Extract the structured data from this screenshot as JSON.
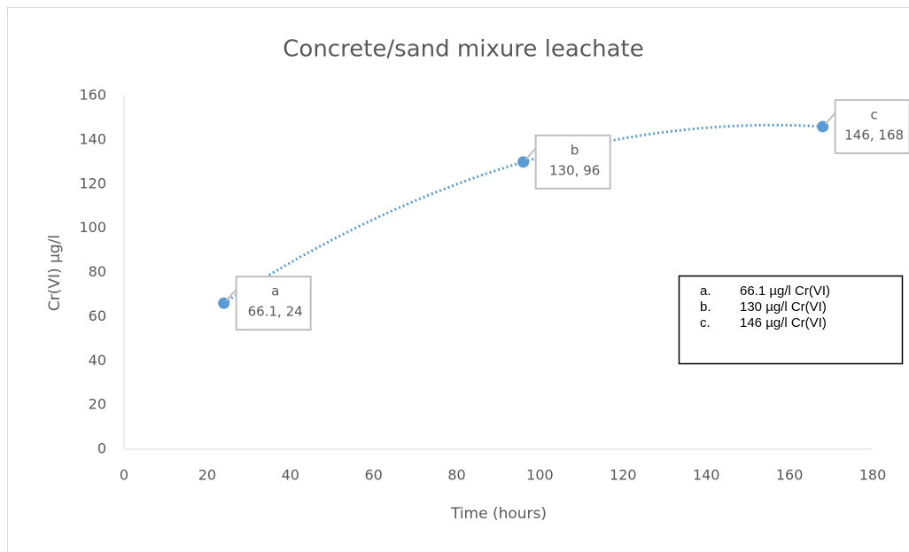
{
  "chart_data": {
    "type": "scatter",
    "title": "Concrete/sand mixure leachate",
    "x_label": "Time (hours)",
    "y_label": "Cr(VI) µg/l",
    "series": [
      {
        "color": "#5b9bd5",
        "x": [
          24,
          96,
          168
        ],
        "values": [
          66.1,
          130,
          146
        ],
        "point_labels": [
          "a",
          "b",
          "c"
        ],
        "value_labels": [
          "66.1, 24",
          "130, 96",
          "146, 168"
        ]
      }
    ],
    "trendline": "dotted",
    "xlim": [
      0,
      180
    ],
    "xticks": [
      0,
      20,
      40,
      60,
      80,
      100,
      120,
      140,
      160,
      180
    ],
    "ylim": [
      0,
      160
    ],
    "yticks": [
      0,
      20,
      40,
      60,
      80,
      100,
      120,
      140,
      160
    ],
    "annotations": [
      {
        "marker": "a.",
        "text": "66.1 µg/l Cr(VI)"
      },
      {
        "marker": "b.",
        "text": "130 µg/l Cr(VI)"
      },
      {
        "marker": "c.",
        "text": "146 µg/l Cr(VI)"
      }
    ]
  }
}
